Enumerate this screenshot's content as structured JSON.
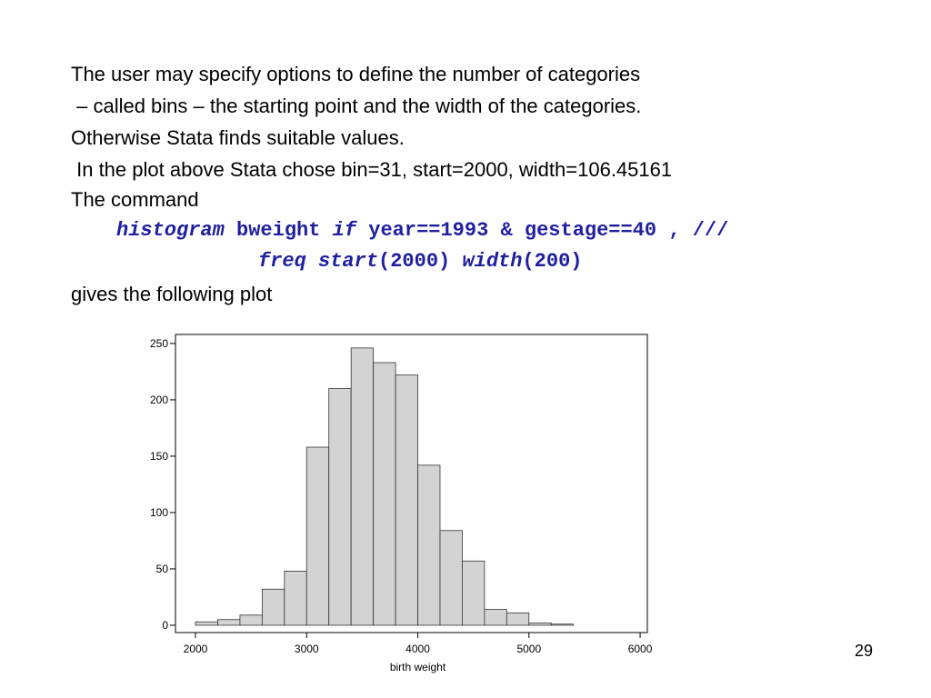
{
  "lines": [
    "The user may specify options to define the number of categories",
    " – called bins – the starting point and the width of the categories.",
    "Otherwise Stata finds suitable values.",
    " In the plot above Stata chose bin=31, start=2000, width=106.45161",
    "The command"
  ],
  "commands": [
    {
      "parts": [
        {
          "text": "histogram",
          "italic": true
        },
        {
          "text": " bweight ",
          "italic": false
        },
        {
          "text": "if",
          "italic": true
        },
        {
          "text": " year==1993 & gestage==40 , ///",
          "italic": false
        }
      ]
    },
    {
      "parts": [
        {
          "text": "freq start",
          "italic": true
        },
        {
          "text": "(2000) ",
          "italic": false
        },
        {
          "text": "width",
          "italic": true
        },
        {
          "text": "(200)",
          "italic": false
        }
      ]
    }
  ],
  "after": "gives the following plot",
  "page_number": "29",
  "chart_data": {
    "type": "histogram",
    "x_label": "birth weight",
    "bins": [
      2000,
      2200,
      2400,
      2600,
      2800,
      3000,
      3200,
      3400,
      3600,
      3800,
      4000,
      4200,
      4400,
      4600,
      4800,
      5000,
      5200,
      5400
    ],
    "values": [
      3,
      5,
      9,
      32,
      48,
      158,
      210,
      246,
      233,
      222,
      142,
      84,
      57,
      14,
      11,
      2,
      1
    ],
    "color": "#d3d3d3",
    "xlim": [
      1820,
      6065
    ],
    "xticks": [
      2000,
      3000,
      4000,
      5000,
      6000
    ],
    "ylim": [
      -6.5,
      258
    ],
    "yticks": [
      0,
      50,
      100,
      150,
      200,
      250
    ]
  }
}
